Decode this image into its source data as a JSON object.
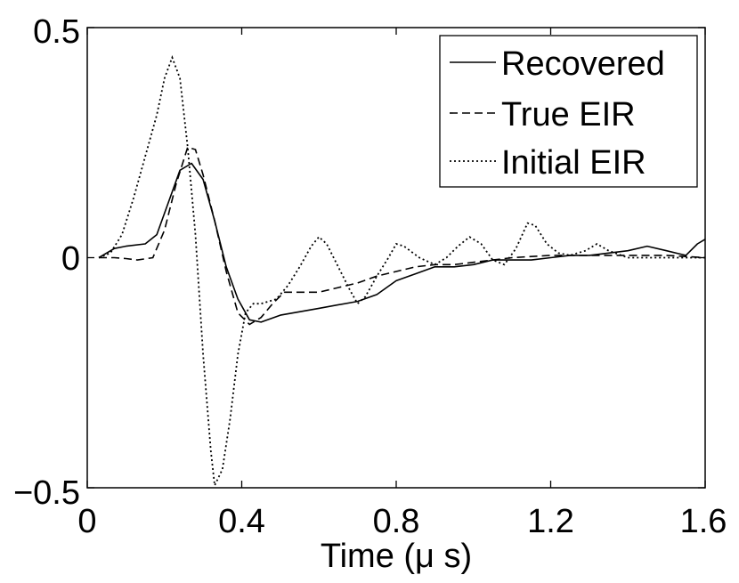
{
  "chart_data": {
    "type": "line",
    "title": "",
    "xlabel": "Time (μ s)",
    "ylabel": "",
    "xlim": [
      0,
      1.6
    ],
    "ylim": [
      -0.5,
      0.5
    ],
    "x_ticks": [
      0,
      0.4,
      0.8,
      1.2,
      1.6
    ],
    "x_tick_labels": [
      "0",
      "0.4",
      "0.8",
      "1.2",
      "1.6"
    ],
    "y_ticks": [
      -0.5,
      0,
      0.5
    ],
    "y_tick_labels": [
      "−0.5",
      "0",
      "0.5"
    ],
    "grid": false,
    "legend_position": "top-right",
    "series": [
      {
        "name": "Recovered",
        "style": "solid",
        "color": "#000000",
        "points": [
          [
            0.03,
            0.0
          ],
          [
            0.07,
            0.02
          ],
          [
            0.1,
            0.025
          ],
          [
            0.15,
            0.03
          ],
          [
            0.18,
            0.05
          ],
          [
            0.21,
            0.12
          ],
          [
            0.24,
            0.19
          ],
          [
            0.27,
            0.205
          ],
          [
            0.3,
            0.17
          ],
          [
            0.33,
            0.08
          ],
          [
            0.36,
            -0.02
          ],
          [
            0.39,
            -0.09
          ],
          [
            0.42,
            -0.135
          ],
          [
            0.45,
            -0.14
          ],
          [
            0.5,
            -0.125
          ],
          [
            0.6,
            -0.11
          ],
          [
            0.7,
            -0.095
          ],
          [
            0.75,
            -0.08
          ],
          [
            0.8,
            -0.05
          ],
          [
            0.85,
            -0.035
          ],
          [
            0.9,
            -0.02
          ],
          [
            0.95,
            -0.02
          ],
          [
            1.0,
            -0.015
          ],
          [
            1.05,
            -0.005
          ],
          [
            1.1,
            -0.005
          ],
          [
            1.15,
            -0.005
          ],
          [
            1.2,
            0.0
          ],
          [
            1.25,
            0.005
          ],
          [
            1.3,
            0.005
          ],
          [
            1.35,
            0.01
          ],
          [
            1.4,
            0.015
          ],
          [
            1.45,
            0.025
          ],
          [
            1.5,
            0.015
          ],
          [
            1.55,
            0.005
          ],
          [
            1.58,
            0.03
          ],
          [
            1.6,
            0.04
          ]
        ]
      },
      {
        "name": "True EIR",
        "style": "dashed",
        "color": "#000000",
        "points": [
          [
            0.03,
            0.0
          ],
          [
            0.07,
            0.0
          ],
          [
            0.1,
            -0.002
          ],
          [
            0.13,
            -0.005
          ],
          [
            0.17,
            0.0
          ],
          [
            0.2,
            0.06
          ],
          [
            0.23,
            0.16
          ],
          [
            0.26,
            0.24
          ],
          [
            0.28,
            0.235
          ],
          [
            0.3,
            0.18
          ],
          [
            0.33,
            0.08
          ],
          [
            0.36,
            -0.03
          ],
          [
            0.39,
            -0.12
          ],
          [
            0.42,
            -0.145
          ],
          [
            0.45,
            -0.13
          ],
          [
            0.48,
            -0.1
          ],
          [
            0.51,
            -0.075
          ],
          [
            0.55,
            -0.075
          ],
          [
            0.6,
            -0.075
          ],
          [
            0.65,
            -0.065
          ],
          [
            0.7,
            -0.055
          ],
          [
            0.75,
            -0.04
          ],
          [
            0.8,
            -0.03
          ],
          [
            0.85,
            -0.02
          ],
          [
            0.9,
            -0.015
          ],
          [
            0.95,
            -0.015
          ],
          [
            1.0,
            -0.01
          ],
          [
            1.05,
            -0.005
          ],
          [
            1.1,
            0.0
          ],
          [
            1.2,
            0.005
          ],
          [
            1.3,
            0.005
          ],
          [
            1.4,
            0.005
          ],
          [
            1.5,
            0.005
          ],
          [
            1.6,
            0.0
          ]
        ]
      },
      {
        "name": "Initial EIR",
        "style": "dotted",
        "color": "#000000",
        "points": [
          [
            0.03,
            0.0
          ],
          [
            0.06,
            0.01
          ],
          [
            0.09,
            0.05
          ],
          [
            0.12,
            0.13
          ],
          [
            0.15,
            0.22
          ],
          [
            0.18,
            0.31
          ],
          [
            0.2,
            0.39
          ],
          [
            0.22,
            0.435
          ],
          [
            0.24,
            0.39
          ],
          [
            0.26,
            0.24
          ],
          [
            0.28,
            0.05
          ],
          [
            0.3,
            -0.21
          ],
          [
            0.32,
            -0.42
          ],
          [
            0.33,
            -0.495
          ],
          [
            0.35,
            -0.46
          ],
          [
            0.37,
            -0.35
          ],
          [
            0.39,
            -0.21
          ],
          [
            0.41,
            -0.12
          ],
          [
            0.43,
            -0.1
          ],
          [
            0.45,
            -0.1
          ],
          [
            0.47,
            -0.095
          ],
          [
            0.49,
            -0.09
          ],
          [
            0.52,
            -0.06
          ],
          [
            0.55,
            -0.02
          ],
          [
            0.58,
            0.025
          ],
          [
            0.6,
            0.045
          ],
          [
            0.62,
            0.03
          ],
          [
            0.65,
            -0.02
          ],
          [
            0.68,
            -0.07
          ],
          [
            0.7,
            -0.1
          ],
          [
            0.72,
            -0.085
          ],
          [
            0.75,
            -0.04
          ],
          [
            0.78,
            0.0
          ],
          [
            0.8,
            0.03
          ],
          [
            0.82,
            0.025
          ],
          [
            0.86,
            0.0
          ],
          [
            0.9,
            -0.015
          ],
          [
            0.93,
            0.0
          ],
          [
            0.96,
            0.025
          ],
          [
            0.99,
            0.045
          ],
          [
            1.02,
            0.03
          ],
          [
            1.05,
            -0.005
          ],
          [
            1.08,
            -0.015
          ],
          [
            1.11,
            0.02
          ],
          [
            1.14,
            0.075
          ],
          [
            1.16,
            0.07
          ],
          [
            1.19,
            0.03
          ],
          [
            1.22,
            0.01
          ],
          [
            1.25,
            0.005
          ],
          [
            1.29,
            0.015
          ],
          [
            1.32,
            0.03
          ],
          [
            1.35,
            0.015
          ],
          [
            1.4,
            0.0
          ],
          [
            1.5,
            0.0
          ],
          [
            1.6,
            0.0
          ]
        ]
      }
    ]
  }
}
